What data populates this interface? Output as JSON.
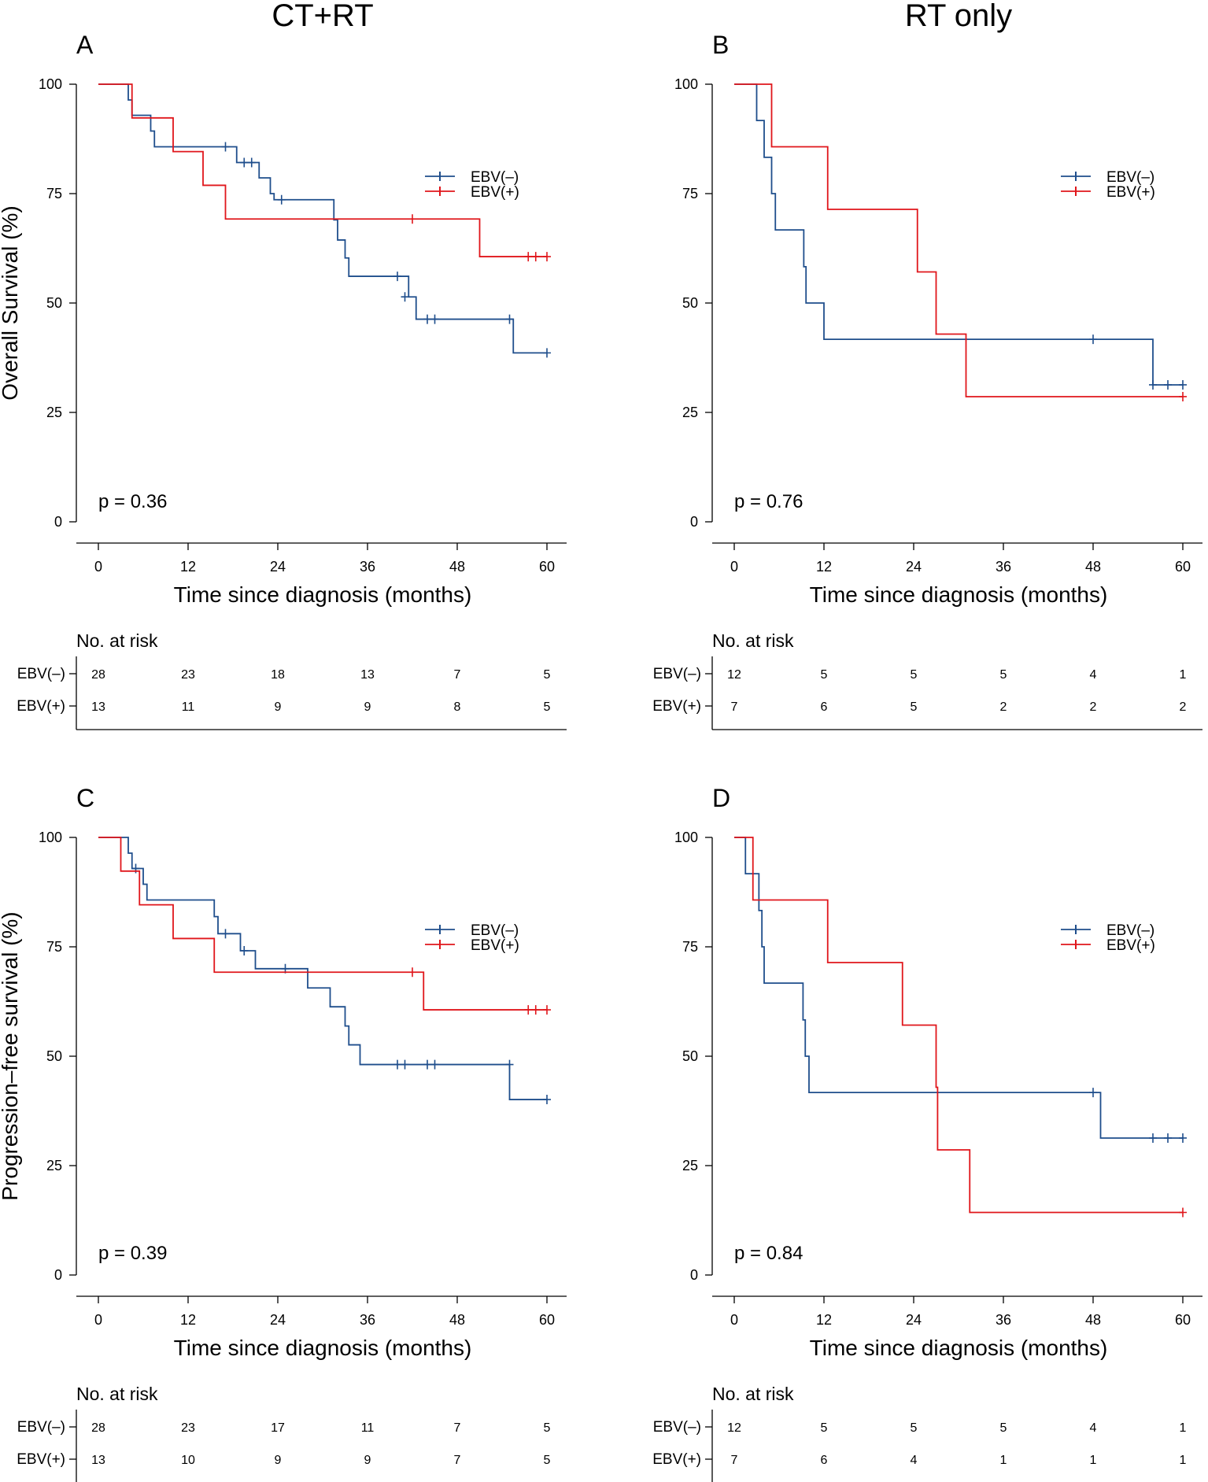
{
  "column_titles": [
    "CT+RT",
    "RT only"
  ],
  "colors": {
    "ebv_neg": "#1f4e8c",
    "ebv_pos": "#e0161b"
  },
  "risk_table_title": "No. at risk",
  "chart_data": [
    {
      "type": "line",
      "panel": "A",
      "column_title": "CT+RT",
      "title": "",
      "xlabel": "Time since diagnosis (months)",
      "ylabel": "Overall Survival (%)",
      "xlim": [
        0,
        60
      ],
      "ylim": [
        0,
        100
      ],
      "xticks": [
        0,
        12,
        24,
        36,
        48,
        60
      ],
      "yticks": [
        0,
        25,
        50,
        75,
        100
      ],
      "p_value": "p = 0.36",
      "legend": [
        "EBV(–)",
        "EBV(+)"
      ],
      "legend_position": "top-right",
      "series": [
        {
          "name": "EBV(–)",
          "steps": [
            [
              0,
              100
            ],
            [
              4,
              96.4
            ],
            [
              4.5,
              92.9
            ],
            [
              6,
              92.9
            ],
            [
              7,
              89.3
            ],
            [
              7.5,
              85.7
            ],
            [
              18,
              85.7
            ],
            [
              18.5,
              82.1
            ],
            [
              21,
              82.1
            ],
            [
              21.5,
              78.6
            ],
            [
              22.5,
              78.6
            ],
            [
              23,
              75.0
            ],
            [
              23.5,
              73.6
            ],
            [
              31,
              73.6
            ],
            [
              31.5,
              69.0
            ],
            [
              32,
              64.4
            ],
            [
              33,
              60.3
            ],
            [
              33.5,
              56.1
            ],
            [
              41,
              56.1
            ],
            [
              41.5,
              51.4
            ],
            [
              42,
              51.4
            ],
            [
              42.5,
              46.3
            ],
            [
              55,
              46.3
            ],
            [
              55.5,
              38.6
            ],
            [
              60,
              38.6
            ]
          ],
          "censor": [
            [
              17,
              85.7
            ],
            [
              19.5,
              82.1
            ],
            [
              20.5,
              82.1
            ],
            [
              24.5,
              73.6
            ],
            [
              40,
              56.1
            ],
            [
              41,
              51.4
            ],
            [
              44,
              46.3
            ],
            [
              45,
              46.3
            ],
            [
              55,
              46.3
            ],
            [
              60,
              38.6
            ]
          ]
        },
        {
          "name": "EBV(+)",
          "steps": [
            [
              0,
              100
            ],
            [
              4.5,
              92.3
            ],
            [
              10,
              92.3
            ],
            [
              10,
              84.6
            ],
            [
              14,
              84.6
            ],
            [
              14,
              76.9
            ],
            [
              17,
              76.9
            ],
            [
              17,
              69.2
            ],
            [
              51,
              69.2
            ],
            [
              51,
              60.6
            ],
            [
              60,
              60.6
            ]
          ],
          "censor": [
            [
              42,
              69.2
            ],
            [
              57.5,
              60.6
            ],
            [
              58.5,
              60.6
            ],
            [
              60,
              60.6
            ]
          ]
        }
      ],
      "risk_table": {
        "times": [
          0,
          12,
          24,
          36,
          48,
          60
        ],
        "rows": [
          {
            "group": "EBV(–)",
            "counts": [
              28,
              23,
              18,
              13,
              7,
              5
            ]
          },
          {
            "group": "EBV(+)",
            "counts": [
              13,
              11,
              9,
              9,
              8,
              5
            ]
          }
        ]
      }
    },
    {
      "type": "line",
      "panel": "B",
      "column_title": "RT only",
      "title": "",
      "xlabel": "Time since diagnosis (months)",
      "ylabel": "",
      "xlim": [
        0,
        60
      ],
      "ylim": [
        0,
        100
      ],
      "xticks": [
        0,
        12,
        24,
        36,
        48,
        60
      ],
      "yticks": [
        0,
        25,
        50,
        75,
        100
      ],
      "p_value": "p = 0.76",
      "legend": [
        "EBV(–)",
        "EBV(+)"
      ],
      "legend_position": "top-right",
      "series": [
        {
          "name": "EBV(–)",
          "steps": [
            [
              0,
              100
            ],
            [
              3,
              91.7
            ],
            [
              4,
              83.3
            ],
            [
              5,
              75.0
            ],
            [
              5.5,
              66.7
            ],
            [
              9,
              66.7
            ],
            [
              9.3,
              58.3
            ],
            [
              9.6,
              50.0
            ],
            [
              12,
              50.0
            ],
            [
              12,
              41.7
            ],
            [
              56,
              41.7
            ],
            [
              56,
              31.3
            ],
            [
              60,
              31.3
            ]
          ],
          "censor": [
            [
              48,
              41.7
            ],
            [
              56,
              31.3
            ],
            [
              58,
              31.3
            ],
            [
              60,
              31.3
            ]
          ]
        },
        {
          "name": "EBV(+)",
          "steps": [
            [
              0,
              100
            ],
            [
              5,
              85.7
            ],
            [
              12.5,
              85.7
            ],
            [
              12.5,
              71.4
            ],
            [
              24.5,
              71.4
            ],
            [
              24.5,
              57.1
            ],
            [
              27,
              57.1
            ],
            [
              27,
              42.9
            ],
            [
              31,
              42.9
            ],
            [
              31,
              28.6
            ],
            [
              60,
              28.6
            ]
          ],
          "censor": [
            [
              60,
              28.6
            ]
          ]
        }
      ],
      "risk_table": {
        "times": [
          0,
          12,
          24,
          36,
          48,
          60
        ],
        "rows": [
          {
            "group": "EBV(–)",
            "counts": [
              12,
              5,
              5,
              5,
              4,
              1
            ]
          },
          {
            "group": "EBV(+)",
            "counts": [
              7,
              6,
              5,
              2,
              2,
              2
            ]
          }
        ]
      }
    },
    {
      "type": "line",
      "panel": "C",
      "column_title": "CT+RT",
      "title": "",
      "xlabel": "Time since diagnosis (months)",
      "ylabel": "Progression–free survival (%)",
      "xlim": [
        0,
        60
      ],
      "ylim": [
        0,
        100
      ],
      "xticks": [
        0,
        12,
        24,
        36,
        48,
        60
      ],
      "yticks": [
        0,
        25,
        50,
        75,
        100
      ],
      "p_value": "p = 0.39",
      "legend": [
        "EBV(–)",
        "EBV(+)"
      ],
      "legend_position": "top-right",
      "series": [
        {
          "name": "EBV(–)",
          "steps": [
            [
              0,
              100
            ],
            [
              4,
              96.4
            ],
            [
              4.5,
              92.9
            ],
            [
              5.5,
              92.9
            ],
            [
              6,
              89.3
            ],
            [
              6.5,
              85.7
            ],
            [
              15,
              85.7
            ],
            [
              15.5,
              81.9
            ],
            [
              16,
              78.0
            ],
            [
              18.5,
              78.0
            ],
            [
              19,
              74.1
            ],
            [
              20.5,
              74.1
            ],
            [
              21,
              70.0
            ],
            [
              28,
              70.0
            ],
            [
              28,
              65.6
            ],
            [
              31,
              65.6
            ],
            [
              31,
              61.3
            ],
            [
              32.5,
              61.3
            ],
            [
              33,
              56.9
            ],
            [
              33.5,
              52.6
            ],
            [
              34.5,
              52.6
            ],
            [
              35,
              48.1
            ],
            [
              55,
              48.1
            ],
            [
              55,
              40.1
            ],
            [
              60,
              40.1
            ]
          ],
          "censor": [
            [
              5,
              92.9
            ],
            [
              17,
              78.0
            ],
            [
              19.5,
              74.1
            ],
            [
              25,
              70.0
            ],
            [
              40,
              48.1
            ],
            [
              41,
              48.1
            ],
            [
              44,
              48.1
            ],
            [
              45,
              48.1
            ],
            [
              55,
              48.1
            ],
            [
              60,
              40.1
            ]
          ]
        },
        {
          "name": "EBV(+)",
          "steps": [
            [
              0,
              100
            ],
            [
              3,
              92.3
            ],
            [
              5.5,
              92.3
            ],
            [
              5.5,
              84.6
            ],
            [
              10,
              84.6
            ],
            [
              10,
              76.9
            ],
            [
              15.5,
              76.9
            ],
            [
              15.5,
              69.2
            ],
            [
              43.5,
              69.2
            ],
            [
              43.5,
              60.6
            ],
            [
              60,
              60.6
            ]
          ],
          "censor": [
            [
              42,
              69.2
            ],
            [
              57.5,
              60.6
            ],
            [
              58.5,
              60.6
            ],
            [
              60,
              60.6
            ]
          ]
        }
      ],
      "risk_table": {
        "times": [
          0,
          12,
          24,
          36,
          48,
          60
        ],
        "rows": [
          {
            "group": "EBV(–)",
            "counts": [
              28,
              23,
              17,
              11,
              7,
              5
            ]
          },
          {
            "group": "EBV(+)",
            "counts": [
              13,
              10,
              9,
              9,
              7,
              5
            ]
          }
        ]
      }
    },
    {
      "type": "line",
      "panel": "D",
      "column_title": "RT only",
      "title": "",
      "xlabel": "Time since diagnosis (months)",
      "ylabel": "",
      "xlim": [
        0,
        60
      ],
      "ylim": [
        0,
        100
      ],
      "xticks": [
        0,
        12,
        24,
        36,
        48,
        60
      ],
      "yticks": [
        0,
        25,
        50,
        75,
        100
      ],
      "p_value": "p = 0.84",
      "legend": [
        "EBV(–)",
        "EBV(+)"
      ],
      "legend_position": "top-right",
      "series": [
        {
          "name": "EBV(–)",
          "steps": [
            [
              0,
              100
            ],
            [
              1.5,
              91.7
            ],
            [
              3,
              91.7
            ],
            [
              3.3,
              83.3
            ],
            [
              3.7,
              75.0
            ],
            [
              4,
              66.7
            ],
            [
              9,
              66.7
            ],
            [
              9.2,
              58.3
            ],
            [
              9.5,
              50.0
            ],
            [
              10,
              41.7
            ],
            [
              49,
              41.7
            ],
            [
              49,
              31.3
            ],
            [
              60,
              31.3
            ]
          ],
          "censor": [
            [
              48,
              41.7
            ],
            [
              56,
              31.3
            ],
            [
              58,
              31.3
            ],
            [
              60,
              31.3
            ]
          ]
        },
        {
          "name": "EBV(+)",
          "steps": [
            [
              0,
              100
            ],
            [
              2.5,
              85.7
            ],
            [
              12.5,
              85.7
            ],
            [
              12.5,
              71.4
            ],
            [
              22.5,
              71.4
            ],
            [
              22.5,
              57.1
            ],
            [
              27,
              57.1
            ],
            [
              27,
              42.9
            ],
            [
              27.2,
              28.6
            ],
            [
              31.5,
              28.6
            ],
            [
              31.5,
              14.3
            ],
            [
              60,
              14.3
            ]
          ],
          "censor": [
            [
              60,
              14.3
            ]
          ]
        }
      ],
      "risk_table": {
        "times": [
          0,
          12,
          24,
          36,
          48,
          60
        ],
        "rows": [
          {
            "group": "EBV(–)",
            "counts": [
              12,
              5,
              5,
              5,
              4,
              1
            ]
          },
          {
            "group": "EBV(+)",
            "counts": [
              7,
              6,
              4,
              1,
              1,
              1
            ]
          }
        ]
      }
    }
  ]
}
